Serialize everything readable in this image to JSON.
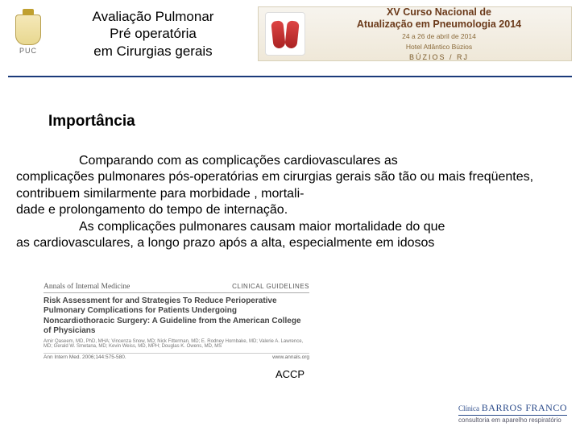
{
  "header": {
    "logo_label": "PUC",
    "title_line1": "Avaliação Pulmonar",
    "title_line2": "Pré operatória",
    "title_line3": "em Cirurgias gerais",
    "banner": {
      "title_line1": "XV Curso Nacional de",
      "title_line2": "Atualização em Pneumologia 2014",
      "dates": "24 a 26 de abril de 2014",
      "hotel": "Hotel Atlântico Búzios",
      "location": "BÚZIOS / RJ"
    }
  },
  "section_heading": "Importância",
  "paragraph1_indent": "Comparando com as complicações cardiovasculares as",
  "paragraph1_rest": " complicações  pulmonares pós-operatórias em cirurgias gerais são tão ou mais freqüentes, contribuem similarmente para morbidade , mortali-\ndade e prolongamento do tempo de internação.",
  "paragraph2_indent": "As complicações pulmonares causam maior mortalidade do que",
  "paragraph2_rest": "as cardiovasculares, a longo prazo após a alta, especialmente em idosos",
  "citation": {
    "journal": "Annals of Internal Medicine",
    "guidelines_label": "CLINICAL GUIDELINES",
    "title": "Risk Assessment for and Strategies To Reduce Perioperative Pulmonary Complications for Patients Undergoing Noncardiothoracic Surgery: A Guideline from the American College of Physicians",
    "authors": "Amir Qaseem, MD, PhD, MHA; Vincenza Snow, MD; Nick Fitterman, MD; E. Rodney Hornbake, MD; Valerie A. Lawrence, MD; Gerald W. Smetana, MD; Kevin Weiss, MD, MPH; Douglas K. Owens, MD, MS",
    "reference": "Ann Intern Med. 2006;144:575-580.",
    "url": "www.annals.org"
  },
  "accp_label": "ACCP",
  "footer": {
    "clinic_prefix": "Clínica",
    "clinic_name": "BARROS FRANCO",
    "clinic_sub": "consultoria em aparelho respiratório"
  },
  "colors": {
    "rule": "#1a3a7a",
    "banner_text": "#6b3a1a",
    "clinic": "#2a4a8a"
  }
}
